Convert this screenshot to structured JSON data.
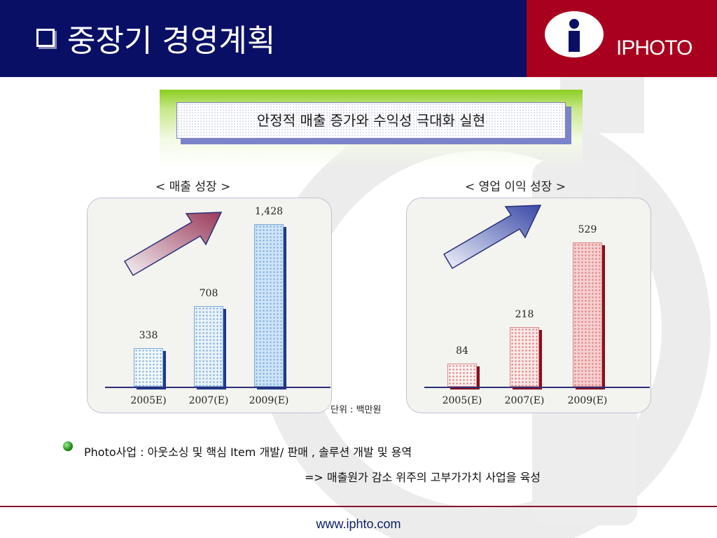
{
  "header": {
    "title": "중장기 경영계획",
    "brand": "IPHOTO",
    "colors": {
      "left": "#0a0f66",
      "right": "#a8001e"
    }
  },
  "slogan": "안정적 매출 증가와 수익성 극대화 실현",
  "chart_data": [
    {
      "type": "bar",
      "title": "< 매출 성장 >",
      "categories": [
        "2005E)",
        "2007(E)",
        "2009(E)"
      ],
      "values": [
        338,
        708,
        1428
      ],
      "value_labels": [
        "338",
        "708",
        "1,428"
      ],
      "ylim": [
        0,
        1428
      ],
      "grid": false,
      "color": "#7fb0e0"
    },
    {
      "type": "bar",
      "title": "< 영업 이익 성장 >",
      "categories": [
        "2005(E)",
        "2007(E)",
        "2009(E)"
      ],
      "values": [
        84,
        218,
        529
      ],
      "value_labels": [
        "84",
        "218",
        "529"
      ],
      "ylim": [
        0,
        529
      ],
      "grid": false,
      "color": "#e07f7f"
    }
  ],
  "unit_note": "단위 : 백만원",
  "notes": {
    "line1": "Photo사업 :  아웃소싱 및 핵심 Item 개발/ 판매 , 솔루션 개발 및 용역",
    "line2": "=> 매출원가 감소 위주의 고부가가치 사업을 육성"
  },
  "footer": "www.iphto.com"
}
